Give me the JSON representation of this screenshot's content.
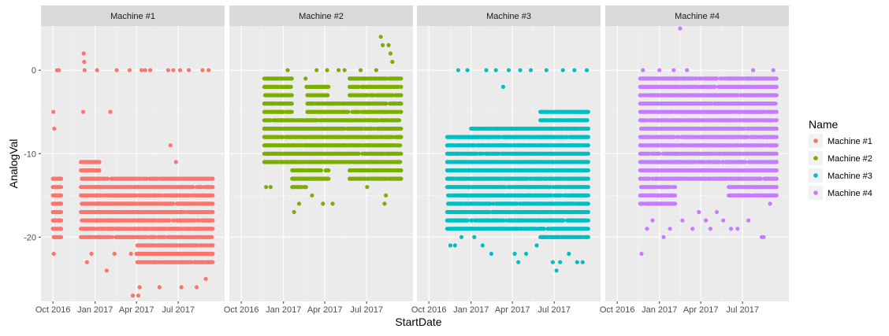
{
  "chart_data": {
    "type": "scatter",
    "facets": [
      "Machine #1",
      "Machine #2",
      "Machine #3",
      "Machine #4"
    ],
    "xlabel": "StartDate",
    "ylabel": "AnalogVal",
    "x_tick_labels": [
      "Oct 2016",
      "Jan 2017",
      "Apr 2017",
      "Jul 2017"
    ],
    "x_ticks": [
      "2016-10-01",
      "2017-01-01",
      "2017-04-01",
      "2017-07-01"
    ],
    "xlim": [
      "2016-09-05",
      "2017-10-10"
    ],
    "y_tick_labels": [
      "0",
      "-10",
      "-20"
    ],
    "y_ticks": [
      0,
      -10,
      -20
    ],
    "ylim": [
      -27.7,
      5.3
    ],
    "grid": true,
    "legend": {
      "title": "Name",
      "position": "right",
      "entries": [
        "Machine #1",
        "Machine #2",
        "Machine #3",
        "Machine #4"
      ]
    },
    "colors": {
      "Machine #1": "#F8766D",
      "Machine #2": "#7CAE00",
      "Machine #3": "#00BFC4",
      "Machine #4": "#C77CFF"
    },
    "series": [
      {
        "name": "Machine #1",
        "segments": [
          {
            "date_from": "2016-10-01",
            "date_to": "2016-10-20",
            "y_min": -20,
            "y_max": -13,
            "step_days": 2
          },
          {
            "date_from": "2016-12-01",
            "date_to": "2017-01-10",
            "y_min": -20,
            "y_max": -11,
            "step_days": 2
          },
          {
            "date_from": "2017-01-10",
            "date_to": "2017-04-01",
            "y_min": -20,
            "y_max": -13,
            "step_days": 2
          },
          {
            "date_from": "2017-04-01",
            "date_to": "2017-09-14",
            "y_min": -23,
            "y_max": -13,
            "step_days": 2
          }
        ],
        "outliers": [
          [
            "2016-10-03",
            -22
          ],
          [
            "2016-10-02",
            -5
          ],
          [
            "2016-10-04",
            -7
          ],
          [
            "2016-10-10",
            0
          ],
          [
            "2016-10-14",
            0
          ],
          [
            "2016-12-07",
            2
          ],
          [
            "2016-12-08",
            1
          ],
          [
            "2016-12-09",
            0
          ],
          [
            "2016-12-06",
            -5
          ],
          [
            "2016-12-14",
            -23
          ],
          [
            "2016-12-24",
            -22
          ],
          [
            "2017-01-05",
            0
          ],
          [
            "2017-01-26",
            -24
          ],
          [
            "2017-02-03",
            -5
          ],
          [
            "2017-02-12",
            -22
          ],
          [
            "2017-02-17",
            0
          ],
          [
            "2017-03-17",
            0
          ],
          [
            "2017-03-20",
            -22
          ],
          [
            "2017-03-24",
            -27
          ],
          [
            "2017-04-05",
            -27
          ],
          [
            "2017-04-08",
            -26
          ],
          [
            "2017-04-12",
            0
          ],
          [
            "2017-04-20",
            0
          ],
          [
            "2017-05-01",
            0
          ],
          [
            "2017-05-08",
            -23
          ],
          [
            "2017-05-21",
            -26
          ],
          [
            "2017-06-09",
            0
          ],
          [
            "2017-06-14",
            -9
          ],
          [
            "2017-06-20",
            0
          ],
          [
            "2017-06-26",
            -11
          ],
          [
            "2017-07-05",
            0
          ],
          [
            "2017-07-08",
            -26
          ],
          [
            "2017-07-24",
            0
          ],
          [
            "2017-08-10",
            -26
          ],
          [
            "2017-08-23",
            0
          ],
          [
            "2017-08-30",
            -25
          ],
          [
            "2017-09-05",
            0
          ]
        ]
      },
      {
        "name": "Machine #2",
        "segments": [
          {
            "date_from": "2016-11-20",
            "date_to": "2017-01-20",
            "y_min": -11,
            "y_max": -1,
            "step_days": 2
          },
          {
            "date_from": "2017-01-20",
            "date_to": "2017-02-20",
            "y_min": -14,
            "y_max": -6,
            "step_days": 2
          },
          {
            "date_from": "2017-02-20",
            "date_to": "2017-04-10",
            "y_min": -13,
            "y_max": -2,
            "step_days": 2
          },
          {
            "date_from": "2017-04-10",
            "date_to": "2017-05-25",
            "y_min": -11,
            "y_max": -4,
            "step_days": 2
          },
          {
            "date_from": "2017-05-25",
            "date_to": "2017-09-14",
            "y_min": -13,
            "y_max": -1,
            "step_days": 2
          }
        ],
        "outliers": [
          [
            "2016-11-24",
            -14
          ],
          [
            "2016-12-04",
            -14
          ],
          [
            "2016-12-14",
            -1
          ],
          [
            "2017-01-10",
            0
          ],
          [
            "2017-01-24",
            -17
          ],
          [
            "2017-02-04",
            -16
          ],
          [
            "2017-02-18",
            -1
          ],
          [
            "2017-03-04",
            -15
          ],
          [
            "2017-03-14",
            0
          ],
          [
            "2017-03-28",
            -16
          ],
          [
            "2017-04-06",
            0
          ],
          [
            "2017-04-18",
            -16
          ],
          [
            "2017-05-01",
            0
          ],
          [
            "2017-05-14",
            0
          ],
          [
            "2017-06-18",
            0
          ],
          [
            "2017-07-02",
            -14
          ],
          [
            "2017-07-22",
            0
          ],
          [
            "2017-08-09",
            -16
          ],
          [
            "2017-08-12",
            -15
          ],
          [
            "2017-08-01",
            4
          ],
          [
            "2017-08-05",
            3
          ],
          [
            "2017-08-18",
            3
          ],
          [
            "2017-08-22",
            2
          ],
          [
            "2017-08-26",
            1
          ]
        ]
      },
      {
        "name": "Machine #3",
        "segments": [
          {
            "date_from": "2016-11-10",
            "date_to": "2017-01-01",
            "y_min": -19,
            "y_max": -8,
            "step_days": 2
          },
          {
            "date_from": "2017-01-01",
            "date_to": "2017-06-01",
            "y_min": -19,
            "y_max": -7,
            "step_days": 2
          },
          {
            "date_from": "2017-06-01",
            "date_to": "2017-09-14",
            "y_min": -20,
            "y_max": -5,
            "step_days": 2
          }
        ],
        "outliers": [
          [
            "2016-11-17",
            -21
          ],
          [
            "2016-11-27",
            -21
          ],
          [
            "2016-12-04",
            0
          ],
          [
            "2016-12-11",
            -20
          ],
          [
            "2016-12-24",
            0
          ],
          [
            "2017-01-08",
            -20
          ],
          [
            "2017-01-26",
            -21
          ],
          [
            "2017-02-03",
            0
          ],
          [
            "2017-02-14",
            -22
          ],
          [
            "2017-02-24",
            0
          ],
          [
            "2017-03-12",
            -2
          ],
          [
            "2017-03-24",
            0
          ],
          [
            "2017-04-06",
            -22
          ],
          [
            "2017-04-14",
            -23
          ],
          [
            "2017-04-18",
            0
          ],
          [
            "2017-05-01",
            -22
          ],
          [
            "2017-05-11",
            0
          ],
          [
            "2017-05-24",
            -21
          ],
          [
            "2017-06-14",
            0
          ],
          [
            "2017-06-28",
            -23
          ],
          [
            "2017-07-06",
            -24
          ],
          [
            "2017-07-14",
            -23
          ],
          [
            "2017-07-20",
            0
          ],
          [
            "2017-08-02",
            -22
          ],
          [
            "2017-08-14",
            0
          ],
          [
            "2017-08-20",
            -23
          ],
          [
            "2017-09-01",
            -23
          ],
          [
            "2017-09-10",
            0
          ]
        ]
      },
      {
        "name": "Machine #4",
        "segments": [
          {
            "date_from": "2016-11-20",
            "date_to": "2017-02-05",
            "y_min": -16,
            "y_max": -1,
            "step_days": 2
          },
          {
            "date_from": "2017-02-05",
            "date_to": "2017-06-01",
            "y_min": -13,
            "y_max": -1,
            "step_days": 2
          },
          {
            "date_from": "2017-06-01",
            "date_to": "2017-09-14",
            "y_min": -15,
            "y_max": -1,
            "step_days": 2
          }
        ],
        "outliers": [
          [
            "2016-11-23",
            -22
          ],
          [
            "2016-11-26",
            0
          ],
          [
            "2016-12-05",
            -19
          ],
          [
            "2016-12-17",
            -18
          ],
          [
            "2017-01-01",
            0
          ],
          [
            "2017-01-10",
            -20
          ],
          [
            "2017-01-24",
            -19
          ],
          [
            "2017-02-01",
            0
          ],
          [
            "2017-02-15",
            5
          ],
          [
            "2017-02-20",
            -18
          ],
          [
            "2017-03-02",
            0
          ],
          [
            "2017-03-14",
            -19
          ],
          [
            "2017-03-28",
            -17
          ],
          [
            "2017-04-12",
            -18
          ],
          [
            "2017-04-22",
            -19
          ],
          [
            "2017-05-06",
            -17
          ],
          [
            "2017-05-20",
            -18
          ],
          [
            "2017-06-06",
            -19
          ],
          [
            "2017-06-20",
            -19
          ],
          [
            "2017-07-14",
            -18
          ],
          [
            "2017-07-24",
            0
          ],
          [
            "2017-08-12",
            -20
          ],
          [
            "2017-08-16",
            -20
          ],
          [
            "2017-08-30",
            -16
          ],
          [
            "2017-09-06",
            0
          ]
        ]
      }
    ]
  }
}
